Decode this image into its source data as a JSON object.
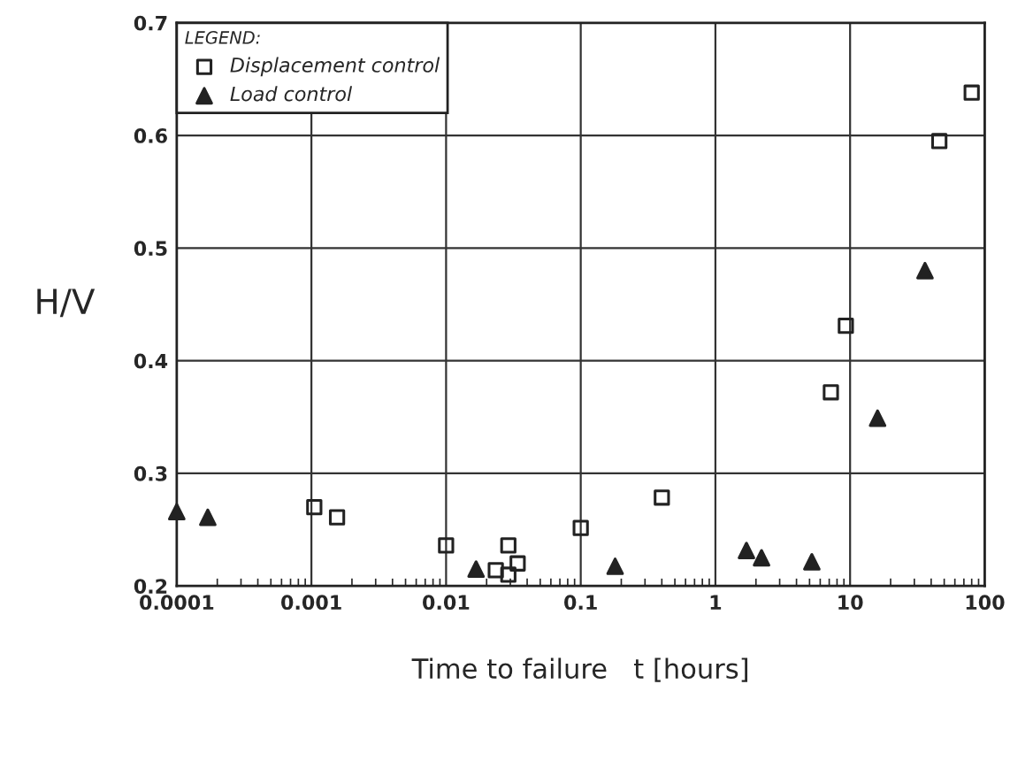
{
  "chart_data": {
    "type": "scatter",
    "xlabel": "Time to failure   t [hours]",
    "ylabel": "H/V",
    "legend_title": "LEGEND:",
    "series": [
      {
        "name": "Displacement control",
        "marker": "square",
        "color": "#222222",
        "x": [
          0.00105,
          0.00155,
          0.01,
          0.0234,
          0.029,
          0.029,
          0.034,
          0.1,
          0.4,
          7.2,
          9.3,
          46,
          80
        ],
        "values": [
          0.27,
          0.261,
          0.236,
          0.214,
          0.21,
          0.236,
          0.22,
          0.2515,
          0.2785,
          0.372,
          0.431,
          0.595,
          0.638
        ]
      },
      {
        "name": "Load control",
        "marker": "triangle",
        "color": "#222222",
        "x": [
          0.0001,
          0.00017,
          0.0167,
          0.18,
          1.7,
          2.2,
          5.2,
          16,
          36
        ],
        "values": [
          0.266,
          0.261,
          0.215,
          0.2175,
          0.2315,
          0.225,
          0.2215,
          0.349,
          0.48
        ]
      }
    ],
    "log": "x",
    "xlim": [
      0.0001,
      100
    ],
    "xticks": [
      0.0001,
      0.001,
      0.01,
      0.1,
      1,
      10,
      100
    ],
    "ylim": [
      0.2,
      0.7
    ],
    "yticks": [
      0.2,
      0.3,
      0.4,
      0.5,
      0.6,
      0.7
    ],
    "grid": true,
    "legend": "top left"
  }
}
